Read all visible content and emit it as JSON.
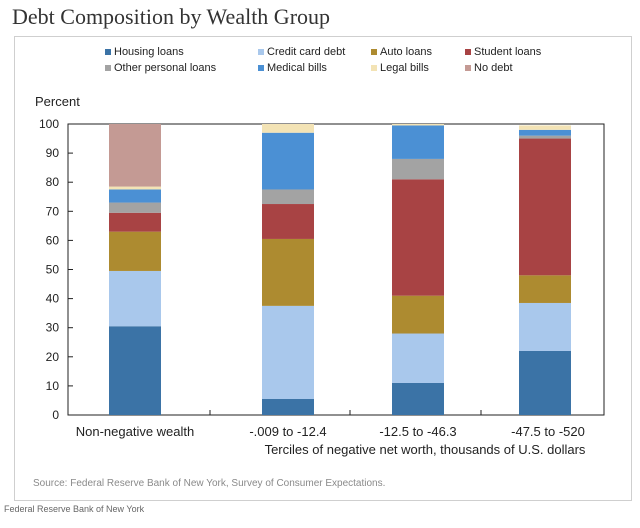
{
  "page": {
    "title": "Debt Composition by Wealth Group",
    "footer_credit": "Federal Reserve Bank of New York"
  },
  "chart_data": {
    "type": "bar",
    "stacked": true,
    "title": "Debt Composition by Wealth Group",
    "ylabel": "Percent",
    "ylim": [
      0,
      100
    ],
    "yticks": [
      0,
      10,
      20,
      30,
      40,
      50,
      60,
      70,
      80,
      90,
      100
    ],
    "categories": [
      "Non-negative wealth",
      "-.009 to -12.4",
      "-12.5 to -46.3",
      "-47.5 to -520"
    ],
    "xlabel": "Terciles of negative net worth, thousands of U.S. dollars",
    "source": "Source: Federal Reserve Bank of New York, Survey of Consumer Expectations.",
    "legend_position": "top",
    "series": [
      {
        "name": "Housing loans",
        "color": "#3b73a6",
        "values": [
          30.5,
          5.5,
          11,
          22
        ]
      },
      {
        "name": "Credit card debt",
        "color": "#a9c8ec",
        "values": [
          19,
          32,
          17,
          16.5
        ]
      },
      {
        "name": "Auto loans",
        "color": "#ad8b30",
        "values": [
          13.5,
          23,
          13,
          9.5
        ]
      },
      {
        "name": "Student loans",
        "color": "#a84344",
        "values": [
          6.5,
          12,
          40,
          47
        ]
      },
      {
        "name": "Other personal loans",
        "color": "#a3a3a3",
        "values": [
          3.5,
          5,
          7,
          1
        ]
      },
      {
        "name": "Medical bills",
        "color": "#4b90d4",
        "values": [
          4.5,
          19.5,
          11.5,
          2
        ]
      },
      {
        "name": "Legal bills",
        "color": "#f3e3b5",
        "values": [
          1,
          3,
          0.5,
          1.5
        ]
      },
      {
        "name": "No debt",
        "color": "#c49a94",
        "values": [
          21.5,
          0,
          0,
          0
        ]
      }
    ]
  }
}
